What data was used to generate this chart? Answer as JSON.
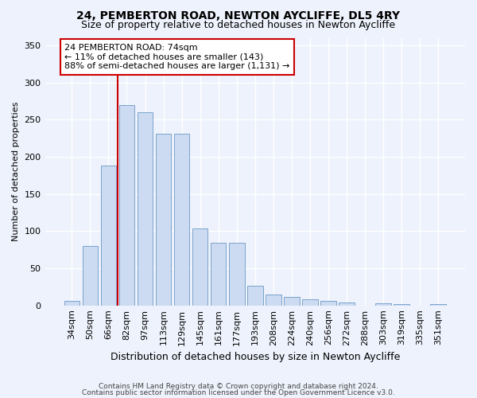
{
  "title": "24, PEMBERTON ROAD, NEWTON AYCLIFFE, DL5 4RY",
  "subtitle": "Size of property relative to detached houses in Newton Aycliffe",
  "xlabel": "Distribution of detached houses by size in Newton Aycliffe",
  "ylabel": "Number of detached properties",
  "categories": [
    "34sqm",
    "50sqm",
    "66sqm",
    "82sqm",
    "97sqm",
    "113sqm",
    "129sqm",
    "145sqm",
    "161sqm",
    "177sqm",
    "193sqm",
    "208sqm",
    "224sqm",
    "240sqm",
    "256sqm",
    "272sqm",
    "288sqm",
    "303sqm",
    "319sqm",
    "335sqm",
    "351sqm"
  ],
  "values": [
    6,
    80,
    188,
    269,
    260,
    231,
    231,
    103,
    84,
    84,
    26,
    15,
    11,
    8,
    6,
    4,
    0,
    3,
    2,
    0,
    2
  ],
  "bar_color": "#ccdaf2",
  "bar_edge_color": "#7aa4cc",
  "vline_color": "#cc0000",
  "annotation_text": "24 PEMBERTON ROAD: 74sqm\n← 11% of detached houses are smaller (143)\n88% of semi-detached houses are larger (1,131) →",
  "annotation_box_color": "#ffffff",
  "annotation_box_edge": "#cc0000",
  "footer1": "Contains HM Land Registry data © Crown copyright and database right 2024.",
  "footer2": "Contains public sector information licensed under the Open Government Licence v3.0.",
  "bg_color": "#eef2fc",
  "plot_bg_color": "#eef2fc",
  "grid_color": "#ffffff",
  "title_fontsize": 10,
  "subtitle_fontsize": 9,
  "ylabel_fontsize": 8,
  "xlabel_fontsize": 9,
  "tick_fontsize": 8,
  "annot_fontsize": 8,
  "footer_fontsize": 6.5,
  "ylim": [
    0,
    360
  ]
}
